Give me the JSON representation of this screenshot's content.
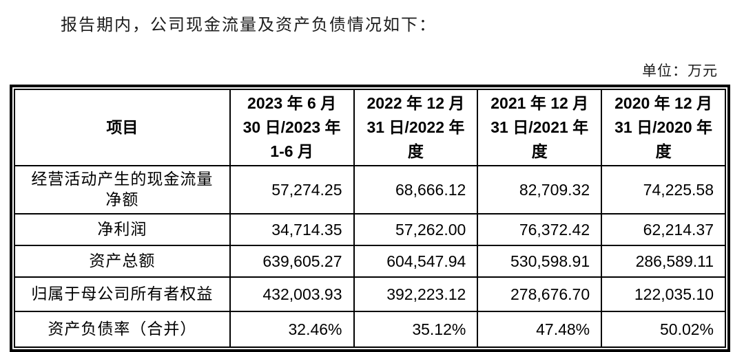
{
  "document": {
    "intro_text": "报告期内，公司现金流量及资产负债情况如下：",
    "unit_label": "单位：万元"
  },
  "colors": {
    "text": "#000000",
    "border": "#000000",
    "background": "#ffffff"
  },
  "table": {
    "columns": [
      "项目",
      "2023 年 6 月\n30 日/2023 年\n1-6 月",
      "2022 年 12 月\n31 日/2022 年\n度",
      "2021 年 12 月\n31 日/2021 年\n度",
      "2020 年 12 月\n31 日/2020 年\n度"
    ],
    "rows": [
      {
        "label": "经营活动产生的现金流量\n净额",
        "values": [
          "57,274.25",
          "68,666.12",
          "82,709.32",
          "74,225.58"
        ]
      },
      {
        "label": "净利润",
        "values": [
          "34,714.35",
          "57,262.00",
          "76,372.42",
          "62,214.37"
        ]
      },
      {
        "label": "资产总额",
        "values": [
          "639,605.27",
          "604,547.94",
          "530,598.91",
          "286,589.11"
        ]
      },
      {
        "label": "归属于母公司所有者权益",
        "values": [
          "432,003.93",
          "392,223.12",
          "278,676.70",
          "122,035.10"
        ]
      },
      {
        "label": "资产负债率（合并）",
        "values": [
          "32.46%",
          "35.12%",
          "47.48%",
          "50.02%"
        ]
      }
    ]
  }
}
